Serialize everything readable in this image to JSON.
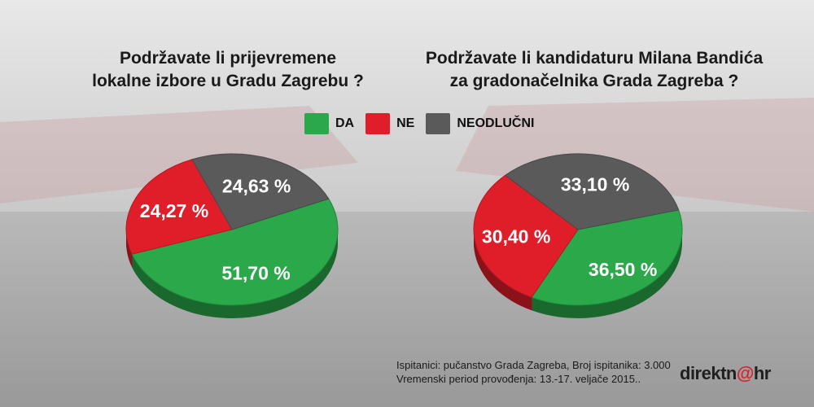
{
  "titles": {
    "left_line1": "Podržavate li prijevremene",
    "left_line2": "lokalne izbore u Gradu Zagrebu ?",
    "right_line1": "Podržavate li kandidaturu Milana Bandića",
    "right_line2": "za gradonačelnika Grada Zagreba ?"
  },
  "legend": [
    {
      "label": "DA",
      "color": "#2aa84a"
    },
    {
      "label": "NE",
      "color": "#e01e2a"
    },
    {
      "label": "NEODLUČNI",
      "color": "#5a5a5a"
    }
  ],
  "chart_data": [
    {
      "type": "pie",
      "title": "Podržavate li prijevremene lokalne izbore u Gradu Zagrebu ?",
      "categories": [
        "DA",
        "NE",
        "NEODLUČNI"
      ],
      "values": [
        51.7,
        24.27,
        24.63
      ],
      "labels": [
        "51,70 %",
        "24,27 %",
        "24,63 %"
      ],
      "colors": [
        "#2aa84a",
        "#e01e2a",
        "#5a5a5a"
      ]
    },
    {
      "type": "pie",
      "title": "Podržavate li kandidaturu Milana Bandića za gradonačelnika Grada Zagreba ?",
      "categories": [
        "DA",
        "NE",
        "NEODLUČNI"
      ],
      "values": [
        36.5,
        30.4,
        33.1
      ],
      "labels": [
        "36,50 %",
        "30,40 %",
        "33,10 %"
      ],
      "colors": [
        "#2aa84a",
        "#e01e2a",
        "#5a5a5a"
      ]
    }
  ],
  "footer": {
    "line1": "Ispitanici: pučanstvo Grada Zagreba, Broj ispitanika: 3.000",
    "line2": "Vremenski period provođenja: 13.-17. veljače 2015.."
  },
  "logo": {
    "part1": "direktn",
    "at": "@",
    "part2": "hr"
  }
}
